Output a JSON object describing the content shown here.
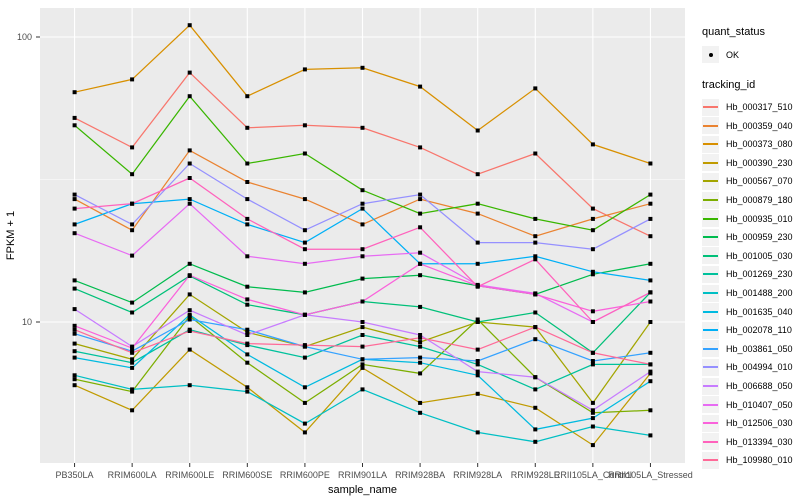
{
  "figure": {
    "colors": {
      "panel_bg": "#EBEBEB",
      "grid": "#FFFFFF",
      "tick": "#333333",
      "tick_label": "#4D4D4D",
      "axis_title": "#000000",
      "point": "#000000",
      "legend_key_bg": "#F2F2F2"
    },
    "y_axis": {
      "label": "FPKM + 1",
      "ticks": [
        {
          "value": 100,
          "label": "100"
        },
        {
          "value": 10,
          "label": "10"
        }
      ],
      "minor_breaks": [
        31.623
      ]
    },
    "x_axis": {
      "label": "sample_name"
    },
    "legend": {
      "quant_status": {
        "title": "quant_status",
        "items": [
          {
            "label": "OK"
          }
        ]
      },
      "tracking_id": {
        "title": "tracking_id"
      }
    }
  },
  "chart_data": {
    "type": "line",
    "title": "",
    "xlabel": "sample_name",
    "ylabel": "FPKM + 1",
    "y_scale": "log10",
    "ylim": [
      3.2,
      126
    ],
    "grid": "on",
    "legend_position": "right",
    "categories": [
      "PB350LA",
      "RRIM600LA",
      "RRIM600LE",
      "RRIM600SE",
      "RRIM600PE",
      "RRIM901LA",
      "RRIM928BA",
      "RRIM928LA",
      "RRIM928LE",
      "RRII105LA_Control",
      "RRII105LA_Stressed"
    ],
    "series": [
      {
        "name": "Hb_000317_510",
        "color": "#F8766D",
        "quant_status": "OK",
        "values": [
          52,
          41,
          75,
          48,
          49,
          48,
          41,
          33,
          39,
          25,
          20
        ]
      },
      {
        "name": "Hb_000359_040",
        "color": "#EA8331",
        "quant_status": "OK",
        "values": [
          27,
          21,
          40,
          31,
          27,
          22,
          27,
          24,
          20,
          23,
          26
        ]
      },
      {
        "name": "Hb_000373_080",
        "color": "#D89000",
        "quant_status": "OK",
        "values": [
          64,
          71,
          110,
          62,
          77,
          78,
          67,
          47,
          66,
          42,
          36
        ]
      },
      {
        "name": "Hb_000390_230",
        "color": "#C09B00",
        "quant_status": "OK",
        "values": [
          6.0,
          4.9,
          8.0,
          5.9,
          4.1,
          6.9,
          5.2,
          5.6,
          5.0,
          3.7,
          6.6
        ]
      },
      {
        "name": "Hb_000567_070",
        "color": "#A3A500",
        "quant_status": "OK",
        "values": [
          8.4,
          7.4,
          12.5,
          9.2,
          8.2,
          9.6,
          8.5,
          10.0,
          9.6,
          5.2,
          10.0
        ]
      },
      {
        "name": "Hb_000879_180",
        "color": "#7CAE00",
        "quant_status": "OK",
        "values": [
          6.3,
          5.7,
          10.5,
          7.2,
          5.2,
          7.1,
          6.6,
          10.2,
          6.4,
          4.8,
          4.9
        ]
      },
      {
        "name": "Hb_000935_010",
        "color": "#39B600",
        "quant_status": "OK",
        "values": [
          49,
          33,
          62,
          36,
          39,
          29,
          24,
          26,
          23,
          21,
          28
        ]
      },
      {
        "name": "Hb_000959_230",
        "color": "#00BB4E",
        "quant_status": "OK",
        "values": [
          14.0,
          11.7,
          16.0,
          13.3,
          12.7,
          14.2,
          14.6,
          13.4,
          12.5,
          14.7,
          16.0
        ]
      },
      {
        "name": "Hb_001005_030",
        "color": "#00C079",
        "quant_status": "OK",
        "values": [
          13.1,
          10.8,
          14.5,
          11.5,
          10.6,
          11.8,
          11.3,
          10.0,
          10.8,
          7.8,
          12.7
        ]
      },
      {
        "name": "Hb_001269_230",
        "color": "#00C19C",
        "quant_status": "OK",
        "values": [
          7.9,
          7.2,
          9.4,
          8.3,
          7.5,
          9.0,
          8.2,
          7.1,
          5.8,
          7.1,
          7.1
        ]
      },
      {
        "name": "Hb_001488_200",
        "color": "#00BFC4",
        "quant_status": "OK",
        "values": [
          6.5,
          5.8,
          6.0,
          5.7,
          4.4,
          5.8,
          4.8,
          4.1,
          3.8,
          4.3,
          4.0
        ]
      },
      {
        "name": "Hb_001635_040",
        "color": "#00BAE0",
        "quant_status": "OK",
        "values": [
          7.5,
          6.9,
          10.6,
          7.7,
          5.9,
          7.4,
          7.2,
          6.5,
          4.2,
          4.6,
          6.2
        ]
      },
      {
        "name": "Hb_002078_110",
        "color": "#00B0F6",
        "quant_status": "OK",
        "values": [
          22,
          26,
          27,
          22,
          19,
          25,
          16,
          16,
          17,
          15,
          14
        ]
      },
      {
        "name": "Hb_003861_050",
        "color": "#35A2FF",
        "quant_status": "OK",
        "values": [
          9.1,
          7.9,
          10.2,
          9.4,
          8.2,
          7.4,
          7.5,
          7.3,
          8.7,
          7.3,
          7.8
        ]
      },
      {
        "name": "Hb_004994_010",
        "color": "#9590FF",
        "quant_status": "OK",
        "values": [
          28,
          22,
          36,
          27,
          21,
          26,
          28,
          19,
          19,
          18,
          23
        ]
      },
      {
        "name": "Hb_006688_050",
        "color": "#C77CFF",
        "quant_status": "OK",
        "values": [
          11.1,
          8.2,
          11.0,
          9.0,
          10.6,
          10.0,
          9.0,
          6.7,
          6.4,
          4.9,
          6.7
        ]
      },
      {
        "name": "Hb_010407_050",
        "color": "#E76BF3",
        "quant_status": "OK",
        "values": [
          20.5,
          17.1,
          26,
          17,
          16,
          17,
          17.5,
          13.5,
          12.6,
          10.0,
          12.7
        ]
      },
      {
        "name": "Hb_012506_030",
        "color": "#FA62DB",
        "quant_status": "OK",
        "values": [
          9.7,
          8.1,
          14.6,
          12.0,
          10.6,
          11.8,
          16.0,
          13.4,
          12.5,
          10.9,
          11.8
        ]
      },
      {
        "name": "Hb_013394_030",
        "color": "#FF62BC",
        "quant_status": "OK",
        "values": [
          25,
          26,
          32,
          23,
          18,
          18,
          21.5,
          13.3,
          16.6,
          10.0,
          12.7
        ]
      },
      {
        "name": "Hb_109980_010",
        "color": "#FF6A98",
        "quant_status": "OK",
        "values": [
          9.4,
          7.8,
          9.3,
          8.4,
          8.3,
          8.2,
          8.8,
          8.0,
          9.6,
          7.8,
          7.1
        ]
      }
    ]
  }
}
